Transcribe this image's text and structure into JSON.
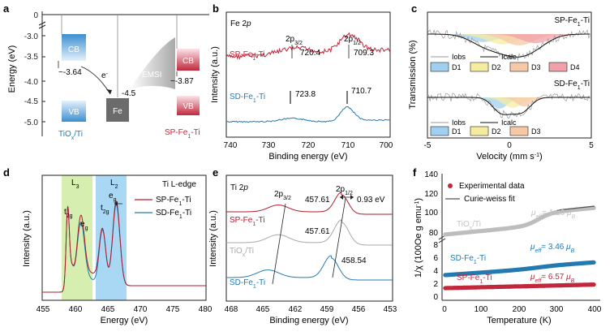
{
  "panels": {
    "a": {
      "letter": "a",
      "ylabel": "Energy (eV)",
      "yticks": [
        "0",
        "-3.0",
        "-3.5",
        "-4.0",
        "-4.5",
        "-5.0"
      ],
      "cb": "CB",
      "vb": "VB",
      "tio2_cb_value": "~-3.64",
      "electron": "e",
      "electron_sup": "-",
      "fe": "Fe",
      "fe_value": "-4.5",
      "emsi": "EMSI",
      "sp_cb_value": "~-3.87",
      "tio2_label": "TiO",
      "tio2_label_sub": "x",
      "tio2_label_tail": "/Ti",
      "sp_label": "SP-Fe",
      "sp_label_sub": "1",
      "sp_label_tail": "-Ti",
      "colors": {
        "blue": "#3b8fd0",
        "red": "#c0283c",
        "fe": "#6b6b6b"
      }
    },
    "b": {
      "letter": "b",
      "title": "Fe 2",
      "title_p": "p",
      "ylabel": "Intensity (a.u.)",
      "xlabel": "Binding energy (eV)",
      "xticks": [
        "740",
        "730",
        "720",
        "710",
        "700"
      ],
      "sp_label": "SP-Fe",
      "sp_sub": "1",
      "sp_tail": "-Ti",
      "sd_label": "SD-Fe",
      "sd_sub": "1",
      "sd_tail": "-Ti",
      "peak32": "2p",
      "peak32_sub": "3/2",
      "peak12": "2p",
      "peak12_sub": "1/2",
      "sp_val1": "720.4",
      "sp_val2": "709.3",
      "sd_val1": "723.8",
      "sd_val2": "710.7",
      "colors": {
        "sp": "#c0283c",
        "sd": "#2479b0"
      }
    },
    "c": {
      "letter": "c",
      "ylabel": "Transmission (%)",
      "xlabel": "Velocity (mm s",
      "xlabel_sup": "-1",
      "xlabel_tail": ")",
      "xticks": [
        "-5",
        "0",
        "5"
      ],
      "top_label": "SP-Fe",
      "top_sub": "1",
      "top_tail": "-Ti",
      "bottom_label": "SD-Fe",
      "bottom_sub": "1",
      "bottom_tail": "-Ti",
      "lobs": "Iobs",
      "lcalc": "Icalc",
      "top_legend": [
        "D1",
        "D2",
        "D3",
        "D4"
      ],
      "bottom_legend": [
        "D1",
        "D2",
        "D3"
      ],
      "colors": {
        "d1": "#9fd0f0",
        "d2": "#f6eca0",
        "d3": "#f6c8a8",
        "d4": "#f0a0a8"
      }
    },
    "d": {
      "letter": "d",
      "ylabel": "Intensity (a.u.)",
      "xlabel": "Energy (eV)",
      "xticks": [
        "455",
        "460",
        "465",
        "470",
        "475",
        "480"
      ],
      "title": "Ti L-edge",
      "l3": "L",
      "l3_sub": "3",
      "l2": "L",
      "l2_sub": "2",
      "t2g": "t",
      "t2g_sub": "2g",
      "eg": "e",
      "eg_sub": "g",
      "sp_label": "SP-Fe",
      "sp_sub": "1",
      "sp_tail": "-Ti",
      "sd_label": "SD-Fe",
      "sd_sub": "1",
      "sd_tail": "-Ti",
      "colors": {
        "sp": "#b01c2c",
        "sd": "#2479b0",
        "l3": "#d6efb0",
        "l2": "#a9d8f5"
      }
    },
    "e": {
      "letter": "e",
      "title": "Ti 2",
      "title_p": "p",
      "ylabel": "Intensity (a.u.)",
      "xlabel": "Binding energy (eV)",
      "xticks": [
        "468",
        "465",
        "462",
        "459",
        "456",
        "453"
      ],
      "peak32": "2p",
      "peak32_sub": "3/2",
      "peak12": "2p",
      "peak12_sub": "1/2",
      "val1": "457.61",
      "val2": "457.61",
      "val3": "458.54",
      "shift": "0.93 eV",
      "sp_label": "SP-Fe",
      "sp_sub": "1",
      "sp_tail": "-Ti",
      "tio_label": "TiO",
      "tio_sub": "x",
      "tio_tail": "/Ti",
      "sd_label": "SD-Fe",
      "sd_sub": "1",
      "sd_tail": "-Ti",
      "colors": {
        "sp": "#b01c2c",
        "tio": "#a8a8a8",
        "sd": "#2479b0"
      }
    },
    "f": {
      "letter": "f",
      "ylabel": "1/χ (100Oe g emu",
      "ylabel_sup": "-1",
      "ylabel_tail": ")",
      "xlabel": "Temperature (K)",
      "xticks": [
        "0",
        "100",
        "200",
        "300",
        "400"
      ],
      "yticks_top": [
        "80",
        "100",
        "120",
        "140"
      ],
      "yticks_bottom": [
        "0",
        "2",
        "4",
        "6",
        "8"
      ],
      "legend_points": "Experimental data",
      "legend_line": "Curie-weiss fit",
      "tio_label": "TiO",
      "tio_sub": "x",
      "tio_tail": "/Ti",
      "tio_mu": "μ",
      "tio_mu_sub": "eff",
      "tio_mu_value": "= 1.20 ",
      "tio_mu_unit": "μ",
      "tio_mu_unit_sub": "B",
      "sd_label": "SD-Fe",
      "sd_sub": "1",
      "sd_tail": "-Ti",
      "sd_mu": "μ",
      "sd_mu_sub": "eff",
      "sd_mu_value": "= 3.46 ",
      "sd_mu_unit": "μ",
      "sd_mu_unit_sub": "B",
      "sp_label": "SP-Fe",
      "sp_sub": "1",
      "sp_tail": "-Ti",
      "sp_mu": "μ",
      "sp_mu_sub": "eff",
      "sp_mu_value": "= 6.57 ",
      "sp_mu_unit": "μ",
      "sp_mu_unit_sub": "B",
      "colors": {
        "tio": "#bdbdbd",
        "sd": "#2479b0",
        "sp": "#c0283c"
      }
    }
  },
  "chart_data": [
    {
      "type": "line",
      "title": "Fe 2p",
      "xlabel": "Binding energy (eV)",
      "ylabel": "Intensity (a.u.)",
      "xlim": [
        740,
        700
      ],
      "series": [
        {
          "name": "SP-Fe1-Ti",
          "peaks": [
            720.4,
            709.3
          ]
        },
        {
          "name": "SD-Fe1-Ti",
          "peaks": [
            723.8,
            710.7
          ]
        }
      ]
    },
    {
      "type": "line",
      "title": "Ti L-edge",
      "xlabel": "Energy (eV)",
      "ylabel": "Intensity (a.u.)",
      "xlim": [
        455,
        480
      ],
      "series": [
        {
          "name": "SP-Fe1-Ti"
        },
        {
          "name": "SD-Fe1-Ti"
        }
      ]
    },
    {
      "type": "line",
      "title": "Ti 2p",
      "xlabel": "Binding energy (eV)",
      "ylabel": "Intensity (a.u.)",
      "xlim": [
        468,
        453
      ],
      "series": [
        {
          "name": "SP-Fe1-Ti",
          "peak": 457.61
        },
        {
          "name": "TiOx/Ti",
          "peak": 457.61
        },
        {
          "name": "SD-Fe1-Ti",
          "peak": 458.54
        }
      ],
      "shift_eV": 0.93
    },
    {
      "type": "scatter",
      "xlabel": "Temperature (K)",
      "ylabel": "1/χ (100Oe g emu-1)",
      "xlim": [
        0,
        400
      ],
      "series": [
        {
          "name": "TiOx/Ti",
          "mu_eff": 1.2,
          "y_start": 88,
          "y_end": 140
        },
        {
          "name": "SD-Fe1-Ti",
          "mu_eff": 3.46,
          "y_start": 3.6,
          "y_end": 6.8
        },
        {
          "name": "SP-Fe1-Ti",
          "mu_eff": 6.57,
          "y_start": 1.7,
          "y_end": 2.3
        }
      ]
    }
  ]
}
